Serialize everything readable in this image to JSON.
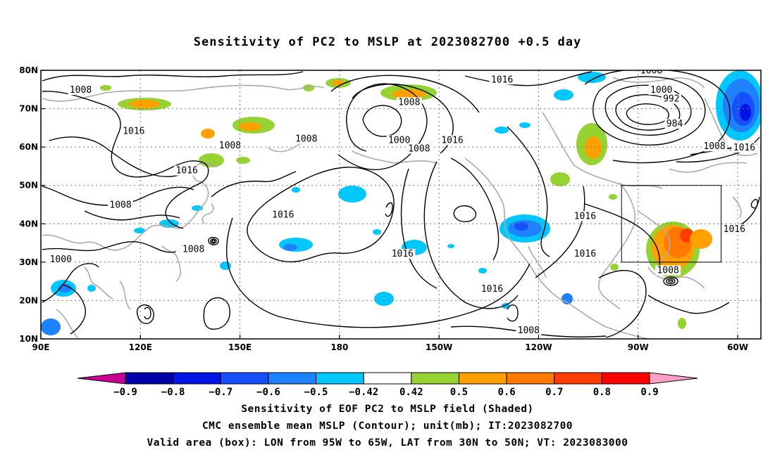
{
  "title": "Sensitivity of PC2 to MSLP at 2023082700 +0.5 day",
  "map": {
    "lon_range": [
      90,
      307
    ],
    "lat_range": [
      10,
      80
    ],
    "lat_ticks": [
      {
        "lat": 80,
        "label": "80N"
      },
      {
        "lat": 70,
        "label": "70N"
      },
      {
        "lat": 60,
        "label": "60N"
      },
      {
        "lat": 50,
        "label": "50N"
      },
      {
        "lat": 40,
        "label": "40N"
      },
      {
        "lat": 30,
        "label": "30N"
      },
      {
        "lat": 20,
        "label": "20N"
      },
      {
        "lat": 10,
        "label": "10N"
      }
    ],
    "lon_ticks": [
      {
        "lon": 90,
        "label": "90E"
      },
      {
        "lon": 120,
        "label": "120E"
      },
      {
        "lon": 150,
        "label": "150E"
      },
      {
        "lon": 180,
        "label": "180"
      },
      {
        "lon": 210,
        "label": "150W"
      },
      {
        "lon": 240,
        "label": "120W"
      },
      {
        "lon": 270,
        "label": "90W"
      },
      {
        "lon": 300,
        "label": "60W"
      }
    ],
    "grid": true,
    "valid_box": {
      "lon_min": 265,
      "lon_max": 295,
      "lat_min": 30,
      "lat_max": 50
    },
    "contour_labels": [
      {
        "text": "1008",
        "lon": 102,
        "lat": 74.5
      },
      {
        "text": "1016",
        "lon": 118,
        "lat": 63.8
      },
      {
        "text": "1008",
        "lon": 147,
        "lat": 60
      },
      {
        "text": "1016",
        "lon": 134,
        "lat": 53.5
      },
      {
        "text": "1008",
        "lon": 170,
        "lat": 61.8
      },
      {
        "text": "1008",
        "lon": 114,
        "lat": 44.5
      },
      {
        "text": "1016",
        "lon": 163,
        "lat": 42
      },
      {
        "text": "1008",
        "lon": 136,
        "lat": 33
      },
      {
        "text": "1000",
        "lon": 96,
        "lat": 30.3
      },
      {
        "text": "1016",
        "lon": 229,
        "lat": 77.2
      },
      {
        "text": "1008",
        "lon": 201,
        "lat": 71.3
      },
      {
        "text": "1000",
        "lon": 198,
        "lat": 61.4
      },
      {
        "text": "1008",
        "lon": 204,
        "lat": 59.2
      },
      {
        "text": "1016",
        "lon": 214,
        "lat": 61.4
      },
      {
        "text": "1016",
        "lon": 199,
        "lat": 31.8
      },
      {
        "text": "1016",
        "lon": 226,
        "lat": 22.6
      },
      {
        "text": "1008",
        "lon": 237,
        "lat": 11.8
      },
      {
        "text": "1016",
        "lon": 254,
        "lat": 41.6
      },
      {
        "text": "1016",
        "lon": 254,
        "lat": 31.8
      },
      {
        "text": "1008",
        "lon": 274,
        "lat": 79.5
      },
      {
        "text": "1000",
        "lon": 277,
        "lat": 74.5
      },
      {
        "text": "992",
        "lon": 280,
        "lat": 72.2
      },
      {
        "text": "984",
        "lon": 281,
        "lat": 65.7
      },
      {
        "text": "1008",
        "lon": 293,
        "lat": 59.8
      },
      {
        "text": "1016",
        "lon": 302,
        "lat": 59.5
      },
      {
        "text": "1016",
        "lon": 299,
        "lat": 38.2
      },
      {
        "text": "1008",
        "lon": 279,
        "lat": 27.5
      }
    ]
  },
  "colorbar": {
    "labels": [
      "-0.9",
      "-0.8",
      "-0.7",
      "-0.6",
      "-0.5",
      "-0.42",
      "0.42",
      "0.5",
      "0.6",
      "0.7",
      "0.8",
      "0.9"
    ],
    "colors": [
      "#0000a8",
      "#0014e6",
      "#1450ff",
      "#1e82ff",
      "#00c8ff",
      "#ffffff",
      "#96d232",
      "#ffa000",
      "#ff7800",
      "#ff3c00",
      "#ff0000"
    ],
    "low_end_color": "#c80096",
    "high_end_color": "#ff9fc8"
  },
  "captions": [
    "Sensitivity of EOF PC2 to MSLP field (Shaded)",
    "CMC ensemble mean MSLP (Contour); unit(mb); IT:2023082700",
    "Valid area (box): LON from 95W to 65W, LAT from 30N to 50N; VT: 2023083000"
  ]
}
